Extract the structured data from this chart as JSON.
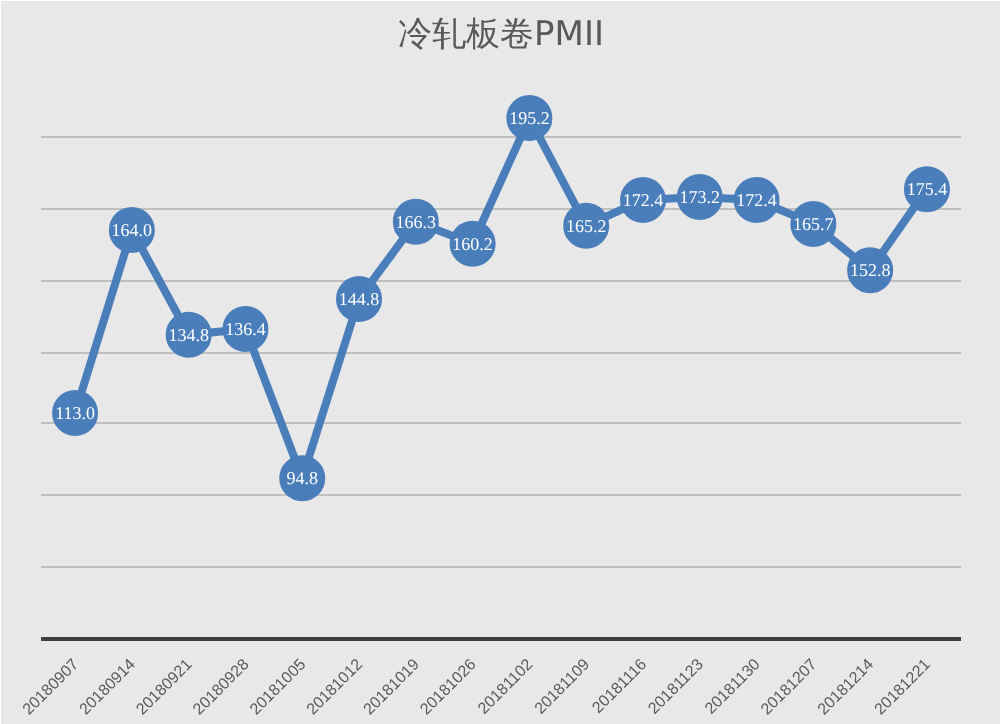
{
  "chart_data": {
    "type": "line",
    "title": "冷轧板卷PMII",
    "categories": [
      "20180907",
      "20180914",
      "20180921",
      "20180928",
      "20181005",
      "20181012",
      "20181019",
      "20181026",
      "20181102",
      "20181109",
      "20181116",
      "20181123",
      "20181130",
      "20181207",
      "20181214",
      "20181221"
    ],
    "series": [
      {
        "color": "#4a7ebb",
        "values": [
          113.0,
          164.0,
          134.8,
          136.4,
          94.8,
          144.8,
          166.3,
          160.2,
          195.2,
          165.2,
          172.4,
          173.2,
          172.4,
          165.7,
          152.8,
          175.4
        ],
        "value_labels": [
          "113.0",
          "164.0",
          "134.8",
          "136.4",
          "94.8",
          "144.8",
          "166.3",
          "160.2",
          "195.2",
          "165.2",
          "172.4",
          "173.2",
          "172.4",
          "165.7",
          "152.8",
          "175.4"
        ]
      }
    ],
    "ylim": [
      50,
      210
    ],
    "yticks": [
      {
        "value": 50,
        "label": null
      },
      {
        "value": 70,
        "label": null
      },
      {
        "value": 90,
        "label": null
      },
      {
        "value": 110,
        "label": null
      },
      {
        "value": 130,
        "label": null
      },
      {
        "value": 150,
        "label": null
      },
      {
        "value": 170,
        "label": null
      },
      {
        "value": 190,
        "label": null
      },
      {
        "value": 210,
        "label": null
      }
    ],
    "tick_labels": "x",
    "grid": "y",
    "marker": "circle",
    "line_style": "solid"
  }
}
